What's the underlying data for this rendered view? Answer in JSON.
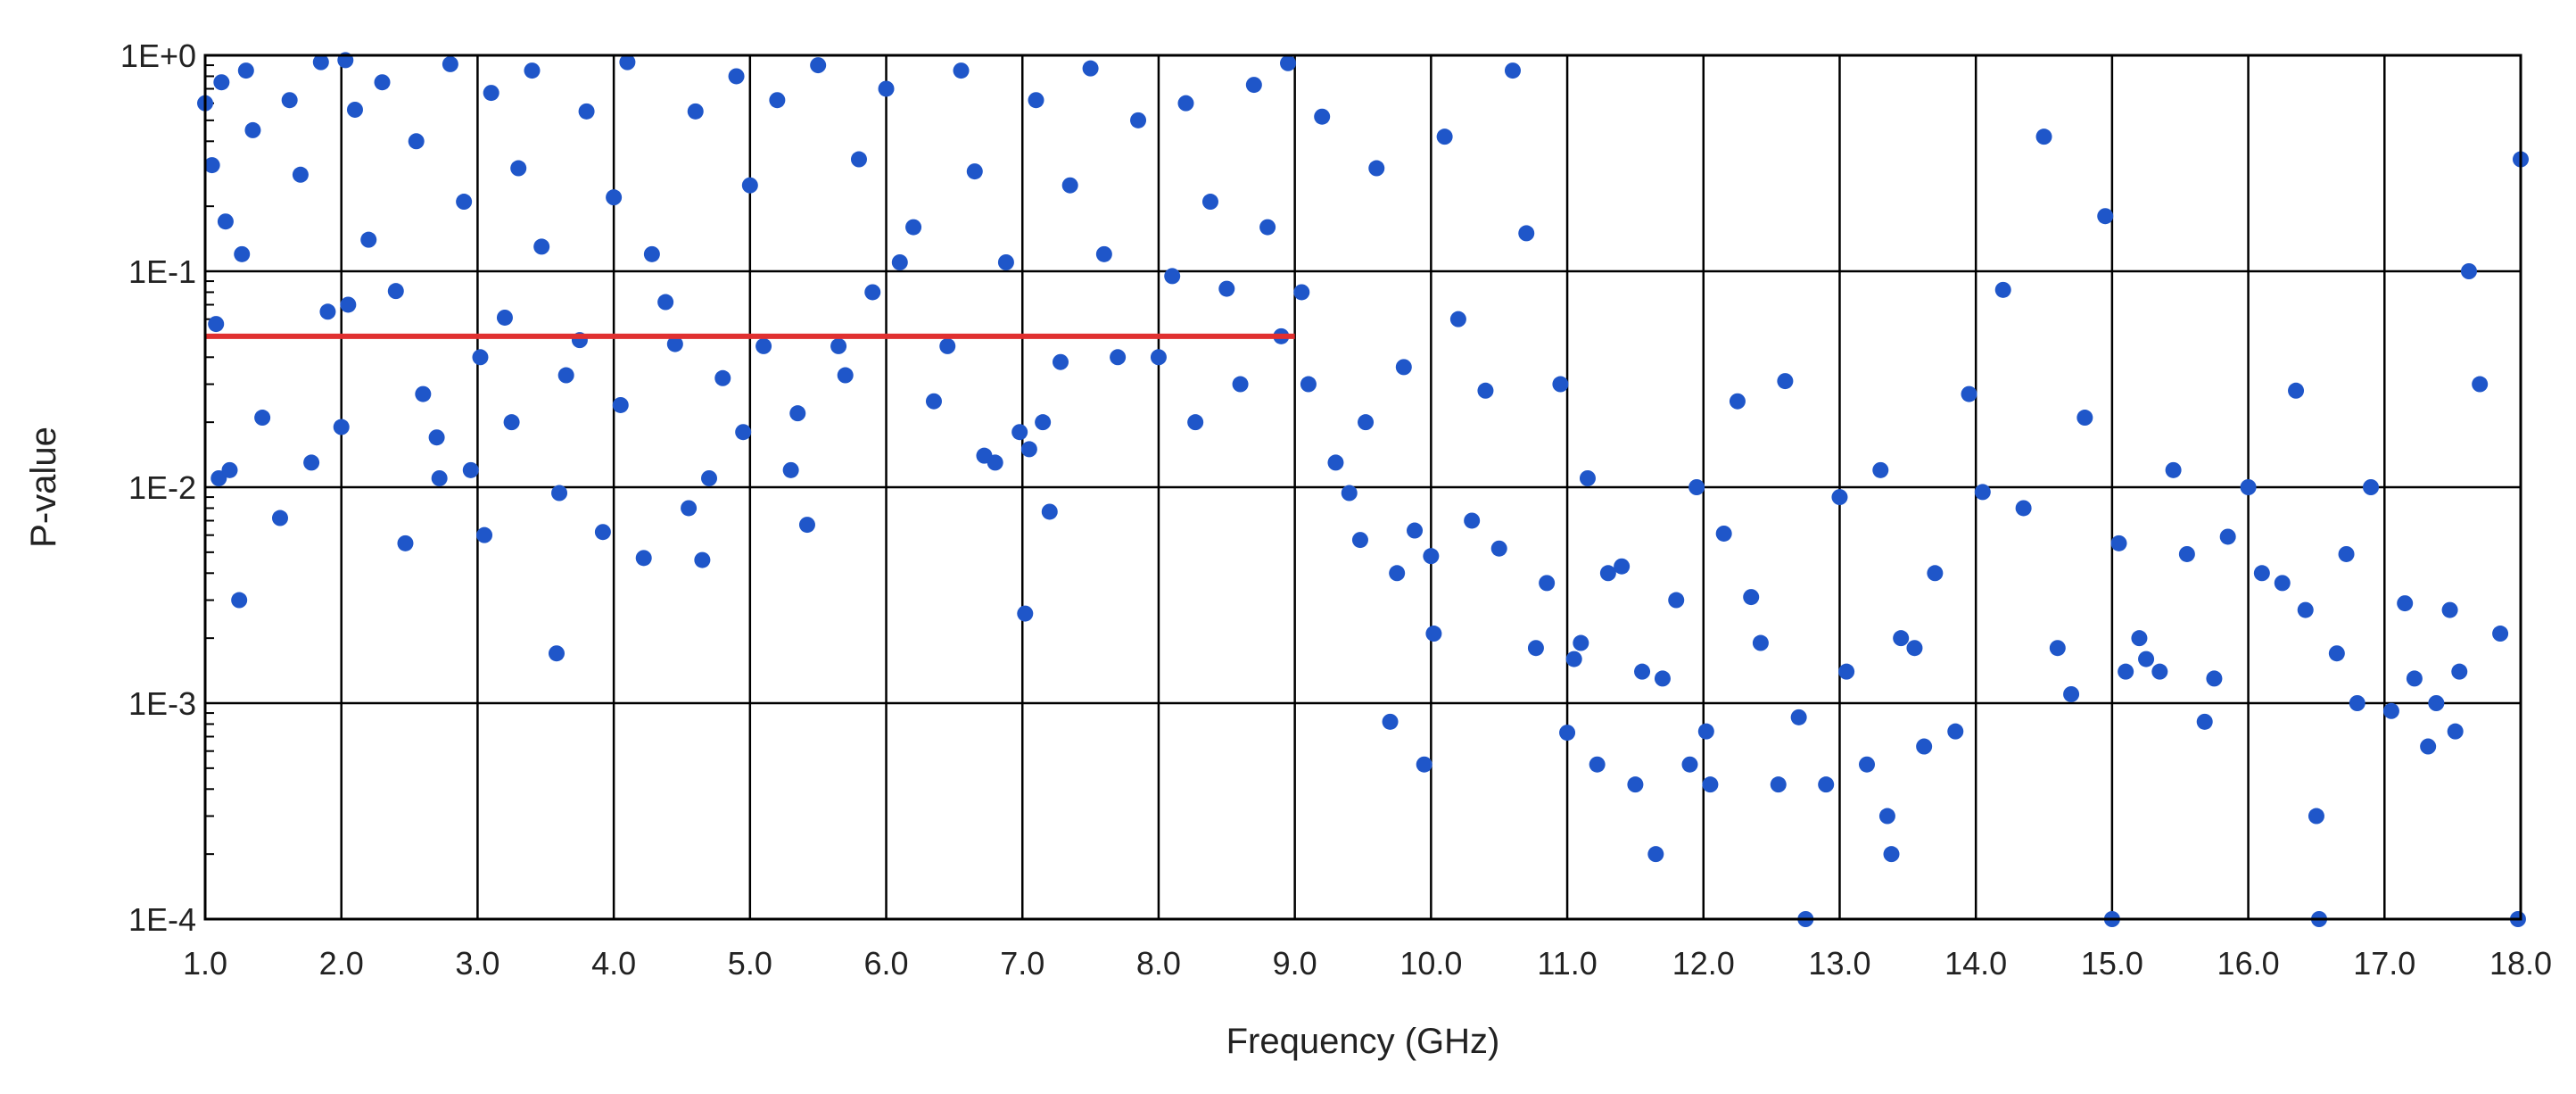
{
  "chart_data": {
    "type": "scatter",
    "title": "",
    "xlabel": "Frequency (GHz)",
    "ylabel": "P-value",
    "xlim": [
      1.0,
      18.0
    ],
    "ylim": [
      0.0001,
      1
    ],
    "y_scale": "log",
    "grid": true,
    "legend": "none",
    "x_ticks": [
      "1.0",
      "2.0",
      "3.0",
      "4.0",
      "5.0",
      "6.0",
      "7.0",
      "8.0",
      "9.0",
      "10.0",
      "11.0",
      "12.0",
      "13.0",
      "14.0",
      "15.0",
      "16.0",
      "17.0",
      "18.0"
    ],
    "y_ticks": [
      {
        "value": 1,
        "label": "1E+0"
      },
      {
        "value": 0.1,
        "label": "1E-1"
      },
      {
        "value": 0.01,
        "label": "1E-2"
      },
      {
        "value": 0.001,
        "label": "1E-3"
      },
      {
        "value": 0.0001,
        "label": "1E-4"
      }
    ],
    "series": [
      {
        "kind": "scatter",
        "color": "#1f56c9",
        "points": [
          [
            1.0,
            0.6
          ],
          [
            1.05,
            0.31
          ],
          [
            1.08,
            0.057
          ],
          [
            1.1,
            0.011
          ],
          [
            1.12,
            0.75
          ],
          [
            1.15,
            0.17
          ],
          [
            1.18,
            0.012
          ],
          [
            1.25,
            0.003
          ],
          [
            1.27,
            0.12
          ],
          [
            1.3,
            0.85
          ],
          [
            1.35,
            0.45
          ],
          [
            1.42,
            0.021
          ],
          [
            1.55,
            0.0072
          ],
          [
            1.62,
            0.62
          ],
          [
            1.7,
            0.28
          ],
          [
            1.78,
            0.013
          ],
          [
            1.85,
            0.93
          ],
          [
            1.9,
            0.065
          ],
          [
            2.0,
            0.019
          ],
          [
            2.03,
            0.95
          ],
          [
            2.05,
            0.07
          ],
          [
            2.1,
            0.56
          ],
          [
            2.2,
            0.14
          ],
          [
            2.3,
            0.75
          ],
          [
            2.4,
            0.081
          ],
          [
            2.47,
            0.0055
          ],
          [
            2.55,
            0.4
          ],
          [
            2.6,
            0.027
          ],
          [
            2.7,
            0.017
          ],
          [
            2.72,
            0.011
          ],
          [
            2.8,
            0.91
          ],
          [
            2.9,
            0.21
          ],
          [
            2.95,
            0.012
          ],
          [
            3.02,
            0.04
          ],
          [
            3.05,
            0.006
          ],
          [
            3.1,
            0.67
          ],
          [
            3.2,
            0.061
          ],
          [
            3.25,
            0.02
          ],
          [
            3.3,
            0.3
          ],
          [
            3.4,
            0.85
          ],
          [
            3.47,
            0.13
          ],
          [
            3.58,
            0.0017
          ],
          [
            3.6,
            0.0094
          ],
          [
            3.65,
            0.033
          ],
          [
            3.75,
            0.048
          ],
          [
            3.8,
            0.55
          ],
          [
            3.92,
            0.0062
          ],
          [
            4.0,
            0.22
          ],
          [
            4.05,
            0.024
          ],
          [
            4.1,
            0.93
          ],
          [
            4.22,
            0.0047
          ],
          [
            4.28,
            0.12
          ],
          [
            4.38,
            0.072
          ],
          [
            4.45,
            0.046
          ],
          [
            4.55,
            0.008
          ],
          [
            4.6,
            0.55
          ],
          [
            4.65,
            0.0046
          ],
          [
            4.7,
            0.011
          ],
          [
            4.8,
            0.032
          ],
          [
            4.9,
            0.8
          ],
          [
            4.95,
            0.018
          ],
          [
            5.0,
            0.25
          ],
          [
            5.1,
            0.045
          ],
          [
            5.2,
            0.62
          ],
          [
            5.3,
            0.012
          ],
          [
            5.35,
            0.022
          ],
          [
            5.42,
            0.0067
          ],
          [
            5.5,
            0.9
          ],
          [
            5.65,
            0.045
          ],
          [
            5.7,
            0.033
          ],
          [
            5.8,
            0.33
          ],
          [
            5.9,
            0.08
          ],
          [
            6.0,
            0.7
          ],
          [
            6.1,
            0.11
          ],
          [
            6.2,
            0.16
          ],
          [
            6.35,
            0.025
          ],
          [
            6.45,
            0.045
          ],
          [
            6.55,
            0.85
          ],
          [
            6.65,
            0.29
          ],
          [
            6.72,
            0.014
          ],
          [
            6.8,
            0.013
          ],
          [
            6.88,
            0.11
          ],
          [
            6.98,
            0.018
          ],
          [
            7.02,
            0.0026
          ],
          [
            7.05,
            0.015
          ],
          [
            7.1,
            0.62
          ],
          [
            7.15,
            0.02
          ],
          [
            7.2,
            0.0077
          ],
          [
            7.28,
            0.038
          ],
          [
            7.35,
            0.25
          ],
          [
            7.5,
            0.87
          ],
          [
            7.6,
            0.12
          ],
          [
            7.7,
            0.04
          ],
          [
            7.85,
            0.5
          ],
          [
            8.0,
            0.04
          ],
          [
            8.1,
            0.095
          ],
          [
            8.2,
            0.6
          ],
          [
            8.27,
            0.02
          ],
          [
            8.38,
            0.21
          ],
          [
            8.5,
            0.083
          ],
          [
            8.6,
            0.03
          ],
          [
            8.7,
            0.73
          ],
          [
            8.8,
            0.16
          ],
          [
            8.9,
            0.05
          ],
          [
            8.95,
            0.92
          ],
          [
            9.05,
            0.08
          ],
          [
            9.1,
            0.03
          ],
          [
            9.2,
            0.52
          ],
          [
            9.3,
            0.013
          ],
          [
            9.4,
            0.0094
          ],
          [
            9.48,
            0.0057
          ],
          [
            9.52,
            0.02
          ],
          [
            9.6,
            0.3
          ],
          [
            9.7,
            0.00082
          ],
          [
            9.75,
            0.004
          ],
          [
            9.8,
            0.036
          ],
          [
            9.88,
            0.0063
          ],
          [
            9.95,
            0.00052
          ],
          [
            10.0,
            0.0048
          ],
          [
            10.02,
            0.0021
          ],
          [
            10.1,
            0.42
          ],
          [
            10.2,
            0.06
          ],
          [
            10.3,
            0.007
          ],
          [
            10.4,
            0.028
          ],
          [
            10.5,
            0.0052
          ],
          [
            10.6,
            0.85
          ],
          [
            10.7,
            0.15
          ],
          [
            10.77,
            0.0018
          ],
          [
            10.85,
            0.0036
          ],
          [
            10.95,
            0.03
          ],
          [
            11.0,
            0.00073
          ],
          [
            11.05,
            0.0016
          ],
          [
            11.1,
            0.0019
          ],
          [
            11.15,
            0.011
          ],
          [
            11.22,
            0.00052
          ],
          [
            11.3,
            0.004
          ],
          [
            11.4,
            0.0043
          ],
          [
            11.5,
            0.00042
          ],
          [
            11.55,
            0.0014
          ],
          [
            11.65,
            0.0002
          ],
          [
            11.7,
            0.0013
          ],
          [
            11.8,
            0.003
          ],
          [
            11.9,
            0.00052
          ],
          [
            11.95,
            0.01
          ],
          [
            12.02,
            0.00074
          ],
          [
            12.05,
            0.00042
          ],
          [
            12.15,
            0.0061
          ],
          [
            12.25,
            0.025
          ],
          [
            12.35,
            0.0031
          ],
          [
            12.42,
            0.0019
          ],
          [
            12.55,
            0.00042
          ],
          [
            12.6,
            0.031
          ],
          [
            12.7,
            0.00086
          ],
          [
            12.75,
            0.0001
          ],
          [
            12.9,
            0.00042
          ],
          [
            13.0,
            0.009
          ],
          [
            13.05,
            0.0014
          ],
          [
            13.2,
            0.00052
          ],
          [
            13.3,
            0.012
          ],
          [
            13.35,
            0.0003
          ],
          [
            13.38,
            0.0002
          ],
          [
            13.45,
            0.002
          ],
          [
            13.55,
            0.0018
          ],
          [
            13.62,
            0.00063
          ],
          [
            13.7,
            0.004
          ],
          [
            13.85,
            0.00074
          ],
          [
            13.95,
            0.027
          ],
          [
            14.05,
            0.0095
          ],
          [
            14.2,
            0.082
          ],
          [
            14.35,
            0.008
          ],
          [
            14.5,
            0.42
          ],
          [
            14.6,
            0.0018
          ],
          [
            14.7,
            0.0011
          ],
          [
            14.8,
            0.021
          ],
          [
            14.95,
            0.18
          ],
          [
            15.0,
            0.0001
          ],
          [
            15.05,
            0.0055
          ],
          [
            15.1,
            0.0014
          ],
          [
            15.2,
            0.002
          ],
          [
            15.25,
            0.0016
          ],
          [
            15.35,
            0.0014
          ],
          [
            15.45,
            0.012
          ],
          [
            15.55,
            0.0049
          ],
          [
            15.68,
            0.00082
          ],
          [
            15.75,
            0.0013
          ],
          [
            15.85,
            0.0059
          ],
          [
            16.0,
            0.01
          ],
          [
            16.1,
            0.004
          ],
          [
            16.25,
            0.0036
          ],
          [
            16.35,
            0.028
          ],
          [
            16.42,
            0.0027
          ],
          [
            16.5,
            0.0003
          ],
          [
            16.52,
            0.0001
          ],
          [
            16.65,
            0.0017
          ],
          [
            16.72,
            0.0049
          ],
          [
            16.8,
            0.001
          ],
          [
            16.9,
            0.01
          ],
          [
            17.05,
            0.00092
          ],
          [
            17.15,
            0.0029
          ],
          [
            17.22,
            0.0013
          ],
          [
            17.32,
            0.00063
          ],
          [
            17.38,
            0.001
          ],
          [
            17.48,
            0.0027
          ],
          [
            17.52,
            0.00074
          ],
          [
            17.55,
            0.0014
          ],
          [
            17.62,
            0.1
          ],
          [
            17.7,
            0.03
          ],
          [
            17.85,
            0.0021
          ],
          [
            17.98,
            0.0001
          ],
          [
            18.0,
            0.33
          ]
        ]
      },
      {
        "kind": "line",
        "color": "#e03030",
        "points": [
          [
            1.0,
            0.05
          ],
          [
            9.0,
            0.05
          ]
        ]
      }
    ]
  }
}
